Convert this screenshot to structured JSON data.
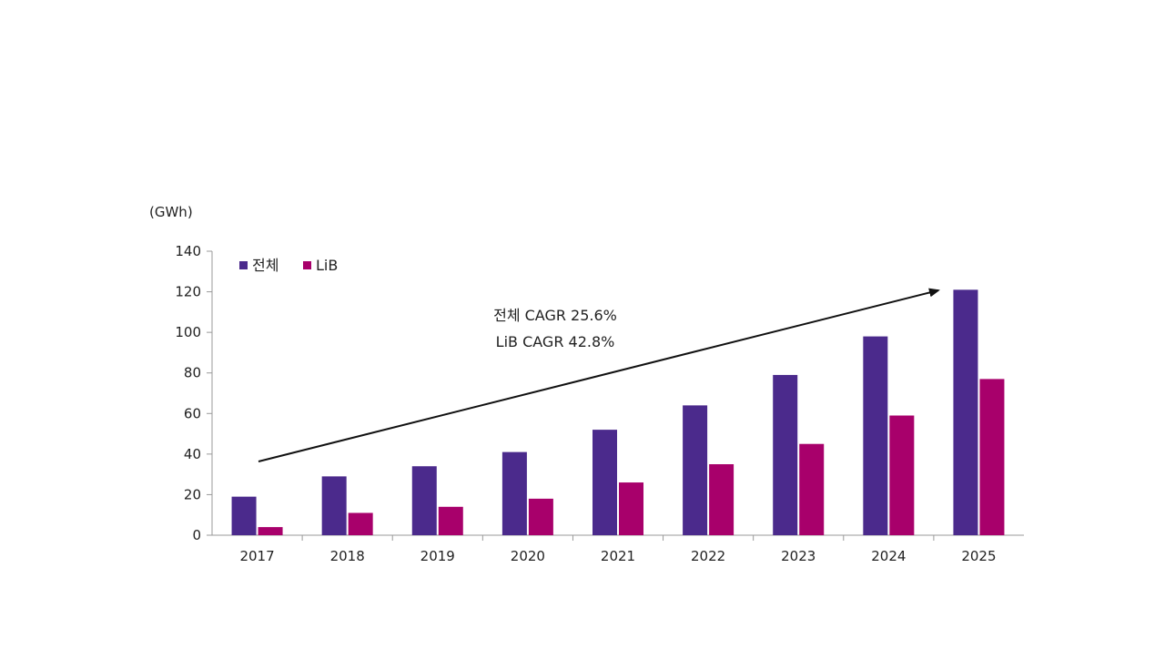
{
  "chart_data": {
    "type": "bar",
    "title": "",
    "xlabel": "",
    "ylabel": "",
    "unit": "(GWh)",
    "categories": [
      "2017",
      "2018",
      "2019",
      "2020",
      "2021",
      "2022",
      "2023",
      "2024",
      "2025"
    ],
    "series": [
      {
        "name": "전체",
        "color": "#4b2a8c",
        "values": [
          19,
          29,
          34,
          41,
          52,
          64,
          79,
          98,
          121
        ]
      },
      {
        "name": "LiB",
        "color": "#a8006b",
        "values": [
          4,
          11,
          14,
          18,
          26,
          35,
          45,
          59,
          77
        ]
      }
    ],
    "ylim": [
      0,
      140
    ],
    "yticks": [
      0,
      20,
      40,
      60,
      80,
      100,
      120,
      140
    ],
    "grid": false,
    "legend": "top-left",
    "annotations": [
      {
        "text": "전체 CAGR 25.6%"
      },
      {
        "text": "LiB CAGR 42.8%"
      }
    ]
  }
}
